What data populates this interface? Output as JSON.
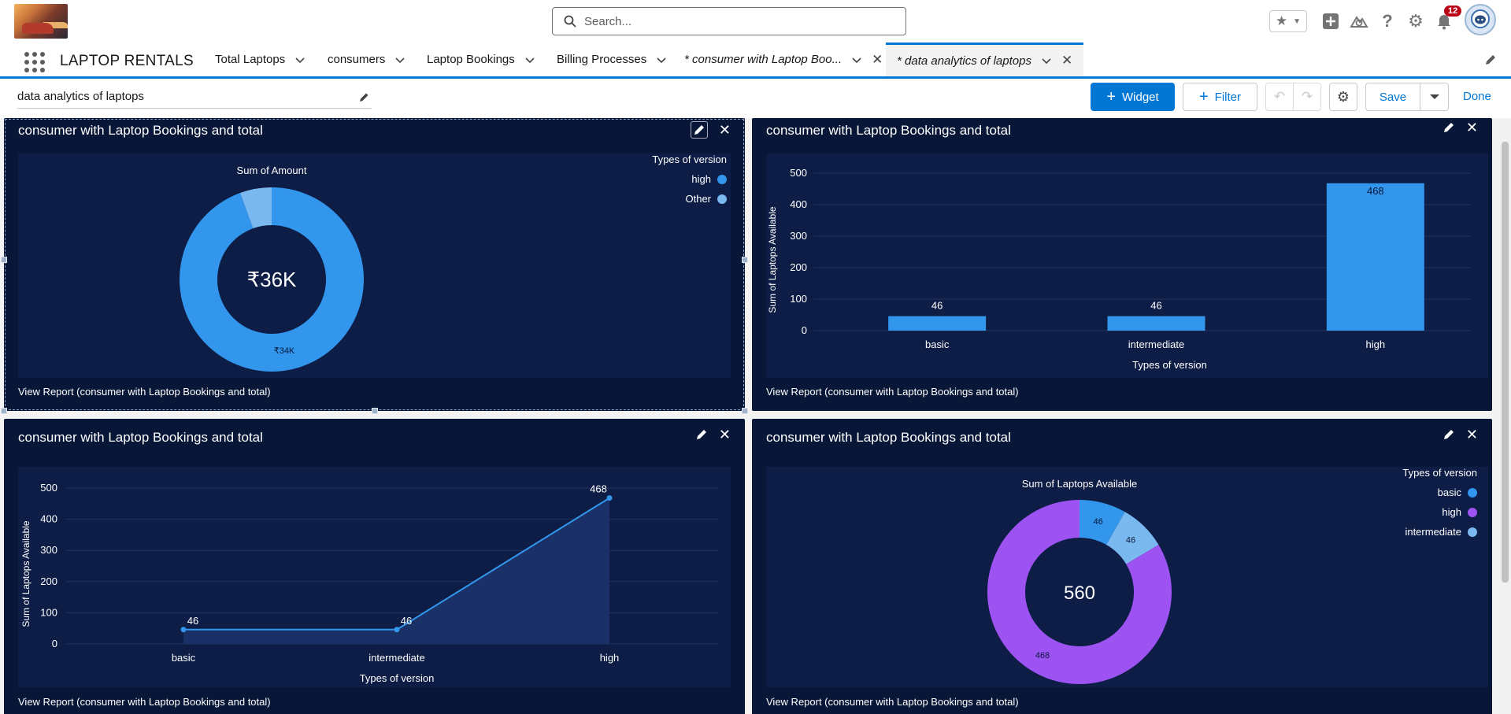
{
  "header": {
    "search_placeholder": "Search...",
    "notification_count": "12"
  },
  "nav": {
    "app_name": "LAPTOP RENTALS",
    "tabs": [
      {
        "label": "Total Laptops"
      },
      {
        "label": "consumers"
      },
      {
        "label": "Laptop Bookings"
      },
      {
        "label": "Billing Processes"
      },
      {
        "label": "* consumer with Laptop Boo..."
      },
      {
        "label": "* data analytics of laptops"
      }
    ]
  },
  "toolbar": {
    "dashboard_name": "data analytics of laptops",
    "widget_label": "Widget",
    "filter_label": "Filter",
    "save_label": "Save",
    "done_label": "Done"
  },
  "widgets": [
    {
      "title": "consumer with Laptop Bookings and total",
      "link": "View Report (consumer with Laptop Bookings and total)"
    },
    {
      "title": "consumer with Laptop Bookings and total",
      "link": "View Report (consumer with Laptop Bookings and total)"
    },
    {
      "title": "consumer with Laptop Bookings and total",
      "link": "View Report (consumer with Laptop Bookings and total)"
    },
    {
      "title": "consumer with Laptop Bookings and total",
      "link": "View Report (consumer with Laptop Bookings and total)"
    }
  ],
  "colors": {
    "accent": "#0176d3",
    "widget_bg": "#081738",
    "plot_bg": "#0d1d46",
    "blue": "#3296ed",
    "light_blue": "#7ab8f0",
    "purple": "#9d53f2"
  },
  "chart_data": [
    {
      "type": "pie",
      "style": "donut",
      "title": "Sum of Amount",
      "center_label": "₹36K",
      "legend_title": "Types of version",
      "categories": [
        "high",
        "Other"
      ],
      "values": [
        34000,
        2000
      ],
      "data_labels": [
        "₹34K",
        ""
      ],
      "colors": [
        "#3296ed",
        "#7ab8f0"
      ]
    },
    {
      "type": "bar",
      "categories": [
        "basic",
        "intermediate",
        "high"
      ],
      "values": [
        46,
        46,
        468
      ],
      "xlabel": "Types of version",
      "ylabel": "Sum of Laptops Available",
      "ylim": [
        0,
        500
      ],
      "yticks": [
        0,
        100,
        200,
        300,
        400,
        500
      ],
      "color": "#3296ed"
    },
    {
      "type": "area",
      "categories": [
        "basic",
        "intermediate",
        "high"
      ],
      "values": [
        46,
        46,
        468
      ],
      "xlabel": "Types of version",
      "ylabel": "Sum of Laptops Available",
      "ylim": [
        0,
        500
      ],
      "yticks": [
        0,
        100,
        200,
        300,
        400,
        500
      ],
      "color": "#3296ed"
    },
    {
      "type": "pie",
      "style": "donut",
      "title": "Sum of Laptops Available",
      "center_label": "560",
      "legend_title": "Types of version",
      "categories": [
        "basic",
        "high",
        "intermediate"
      ],
      "values": [
        46,
        468,
        46
      ],
      "slice_order": [
        "basic",
        "intermediate",
        "high"
      ],
      "colors": [
        "#3296ed",
        "#9d53f2",
        "#7ab8f0"
      ]
    }
  ]
}
